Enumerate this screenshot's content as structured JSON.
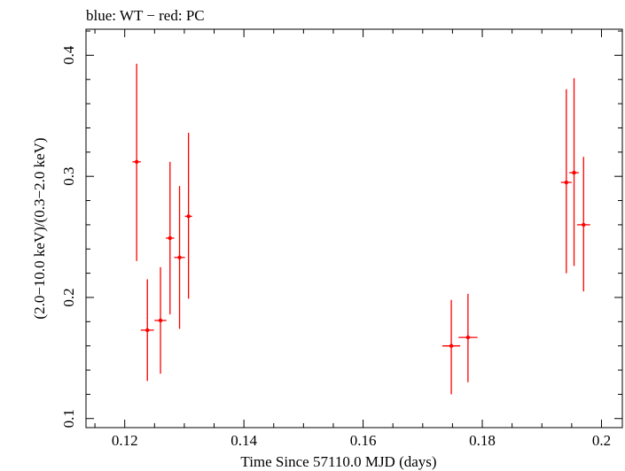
{
  "chart_data": {
    "type": "scatter",
    "title": "blue: WT − red: PC",
    "xlabel": "Time Since 57110.0 MJD (days)",
    "ylabel": "(2.0−10.0 keV)/(0.3−2.0 keV)",
    "xlim": [
      0.1135,
      0.2035
    ],
    "ylim": [
      0.0925,
      0.4215
    ],
    "x_ticks": [
      0.12,
      0.14,
      0.16,
      0.18,
      0.2
    ],
    "x_tick_labels": [
      "0.12",
      "0.14",
      "0.16",
      "0.18",
      "0.2"
    ],
    "y_ticks": [
      0.1,
      0.2,
      0.3,
      0.4
    ],
    "y_tick_labels": [
      "0.1",
      "0.2",
      "0.3",
      "0.4"
    ],
    "grid": false,
    "series": [
      {
        "color": "#ff0000",
        "points": [
          {
            "x": 0.122,
            "xerr": 0.0007,
            "y": 0.312,
            "ylo": 0.23,
            "yhi": 0.393
          },
          {
            "x": 0.1238,
            "xerr": 0.0011,
            "y": 0.173,
            "ylo": 0.131,
            "yhi": 0.215
          },
          {
            "x": 0.126,
            "xerr": 0.001,
            "y": 0.181,
            "ylo": 0.137,
            "yhi": 0.225
          },
          {
            "x": 0.1276,
            "xerr": 0.0007,
            "y": 0.249,
            "ylo": 0.186,
            "yhi": 0.312
          },
          {
            "x": 0.1292,
            "xerr": 0.0009,
            "y": 0.233,
            "ylo": 0.174,
            "yhi": 0.292
          },
          {
            "x": 0.1307,
            "xerr": 0.0006,
            "y": 0.267,
            "ylo": 0.199,
            "yhi": 0.336
          },
          {
            "x": 0.1748,
            "xerr": 0.0015,
            "y": 0.16,
            "ylo": 0.12,
            "yhi": 0.198
          },
          {
            "x": 0.1776,
            "xerr": 0.0016,
            "y": 0.167,
            "ylo": 0.13,
            "yhi": 0.203
          },
          {
            "x": 0.1941,
            "xerr": 0.0009,
            "y": 0.295,
            "ylo": 0.22,
            "yhi": 0.372
          },
          {
            "x": 0.1954,
            "xerr": 0.0008,
            "y": 0.303,
            "ylo": 0.226,
            "yhi": 0.381
          },
          {
            "x": 0.197,
            "xerr": 0.0011,
            "y": 0.26,
            "ylo": 0.205,
            "yhi": 0.316
          }
        ]
      }
    ]
  }
}
